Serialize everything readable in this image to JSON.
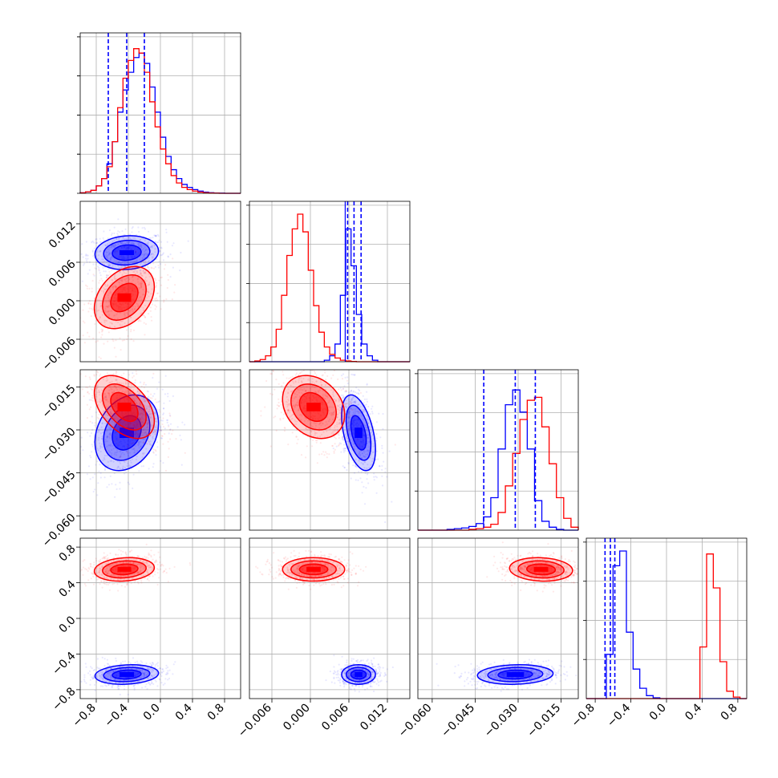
{
  "chart_data": {
    "type": "corner",
    "series": [
      {
        "name": "",
        "color": "#0000ff",
        "params": [
          {
            "median": -0.42,
            "quantiles": [
              -0.65,
              -0.42,
              -0.2
            ],
            "sigma": 0.18,
            "hist": [
              0.003,
              0.01,
              0.02,
              0.05,
              0.1,
              0.2,
              0.35,
              0.55,
              0.7,
              0.82,
              0.92,
              0.95,
              0.88,
              0.72,
              0.55,
              0.38,
              0.25,
              0.16,
              0.1,
              0.06,
              0.04,
              0.025,
              0.015,
              0.008,
              0.004,
              0.002,
              0.001,
              0,
              0,
              0
            ]
          },
          {
            "median": 0.0075,
            "quantiles": [
              0.0058,
              0.0068,
              0.0079
            ],
            "sigma": 0.0012,
            "hist": [
              0,
              0,
              0,
              0,
              0,
              0,
              0,
              0,
              0,
              0,
              0,
              0,
              0,
              0,
              0.01,
              0.04,
              0.12,
              0.45,
              0.9,
              0.65,
              0.32,
              0.12,
              0.04,
              0.01,
              0,
              0,
              0,
              0,
              0,
              0
            ]
          },
          {
            "median": -0.031,
            "quantiles": [
              -0.042,
              -0.031,
              -0.024
            ],
            "sigma": 0.006,
            "hist": [
              0,
              0,
              0,
              0,
              0.005,
              0.01,
              0.015,
              0.025,
              0.045,
              0.09,
              0.22,
              0.55,
              0.85,
              0.95,
              0.8,
              0.55,
              0.2,
              0.06,
              0.02,
              0.005,
              0,
              0
            ]
          },
          {
            "median": -0.63,
            "quantiles": [
              -0.69,
              -0.63,
              -0.58
            ],
            "sigma": 0.05,
            "hist": [
              0,
              0,
              0,
              0.3,
              0.9,
              1.0,
              0.45,
              0.2,
              0.07,
              0.02,
              0.005,
              0,
              0,
              0,
              0,
              0,
              0,
              0,
              0,
              0,
              0,
              0,
              0,
              0
            ]
          }
        ]
      },
      {
        "name": "",
        "color": "#ff0000",
        "params": [
          {
            "median": -0.45,
            "quantiles": [],
            "sigma": 0.17,
            "hist": [
              0.003,
              0.01,
              0.02,
              0.05,
              0.1,
              0.18,
              0.35,
              0.58,
              0.78,
              0.9,
              0.98,
              0.95,
              0.82,
              0.62,
              0.45,
              0.3,
              0.2,
              0.12,
              0.07,
              0.04,
              0.025,
              0.015,
              0.008,
              0.004,
              0.002,
              0.001,
              0,
              0,
              0,
              0
            ]
          },
          {
            "median": 0.0005,
            "quantiles": [],
            "sigma": 0.0022,
            "hist": [
              0,
              0.005,
              0.015,
              0.04,
              0.1,
              0.22,
              0.45,
              0.72,
              0.9,
              1.0,
              0.88,
              0.62,
              0.38,
              0.2,
              0.1,
              0.05,
              0.025,
              0.01,
              0.005,
              0.002,
              0,
              0,
              0,
              0,
              0,
              0,
              0,
              0,
              0,
              0
            ]
          },
          {
            "median": -0.022,
            "quantiles": [],
            "sigma": 0.005,
            "hist": [
              0,
              0,
              0,
              0,
              0,
              0,
              0,
              0.005,
              0.01,
              0.02,
              0.04,
              0.12,
              0.3,
              0.52,
              0.75,
              0.88,
              0.9,
              0.7,
              0.45,
              0.22,
              0.08,
              0.02
            ]
          },
          {
            "median": 0.55,
            "quantiles": [],
            "sigma": 0.06,
            "hist": [
              0,
              0,
              0,
              0,
              0,
              0,
              0,
              0,
              0,
              0,
              0,
              0,
              0,
              0,
              0,
              0,
              0,
              0.35,
              0.98,
              0.75,
              0.25,
              0.05,
              0.01,
              0
            ]
          }
        ]
      }
    ],
    "params": [
      {
        "range": [
          -1.0,
          1.0
        ],
        "ticks": [
          -0.8,
          -0.4,
          0.0,
          0.4,
          0.8
        ],
        "tick_labels": [
          "−0.8",
          "−0.4",
          "0.0",
          "0.4",
          "0.8"
        ]
      },
      {
        "range": [
          -0.0095,
          0.0155
        ],
        "ticks": [
          -0.006,
          0.0,
          0.006,
          0.012
        ],
        "tick_labels": [
          "−0.006",
          "0.000",
          "0.006",
          "0.012"
        ]
      },
      {
        "range": [
          -0.065,
          -0.009
        ],
        "ticks": [
          -0.06,
          -0.045,
          -0.03,
          -0.015
        ],
        "tick_labels": [
          "−0.060",
          "−0.045",
          "−0.030",
          "−0.015"
        ]
      },
      {
        "range": [
          -0.9,
          0.9
        ],
        "ticks": [
          -0.8,
          -0.4,
          0.0,
          0.4,
          0.8
        ],
        "tick_labels": [
          "−0.8",
          "−0.4",
          "0.0",
          "0.4",
          "0.8"
        ]
      }
    ],
    "pairs": [
      {
        "row": 1,
        "col": 0,
        "rho": [
          0.1,
          0.35
        ],
        "extra_ticks": [
          0.006
        ]
      },
      {
        "row": 2,
        "col": 0,
        "rho": [
          0.25,
          -0.45
        ],
        "extra_ticks": []
      },
      {
        "row": 2,
        "col": 1,
        "rho": [
          -0.45,
          -0.25
        ],
        "extra_ticks": []
      },
      {
        "row": 3,
        "col": 0,
        "rho": [
          0.15,
          0.15
        ],
        "extra_ticks": []
      },
      {
        "row": 3,
        "col": 1,
        "rho": [
          0.0,
          0.0
        ],
        "extra_ticks": []
      },
      {
        "row": 3,
        "col": 2,
        "rho": [
          0.1,
          -0.1
        ],
        "extra_ticks": []
      }
    ],
    "contour_levels_sigma": [
      1.0,
      1.6,
      2.2
    ],
    "grid": true,
    "legend": "none"
  }
}
